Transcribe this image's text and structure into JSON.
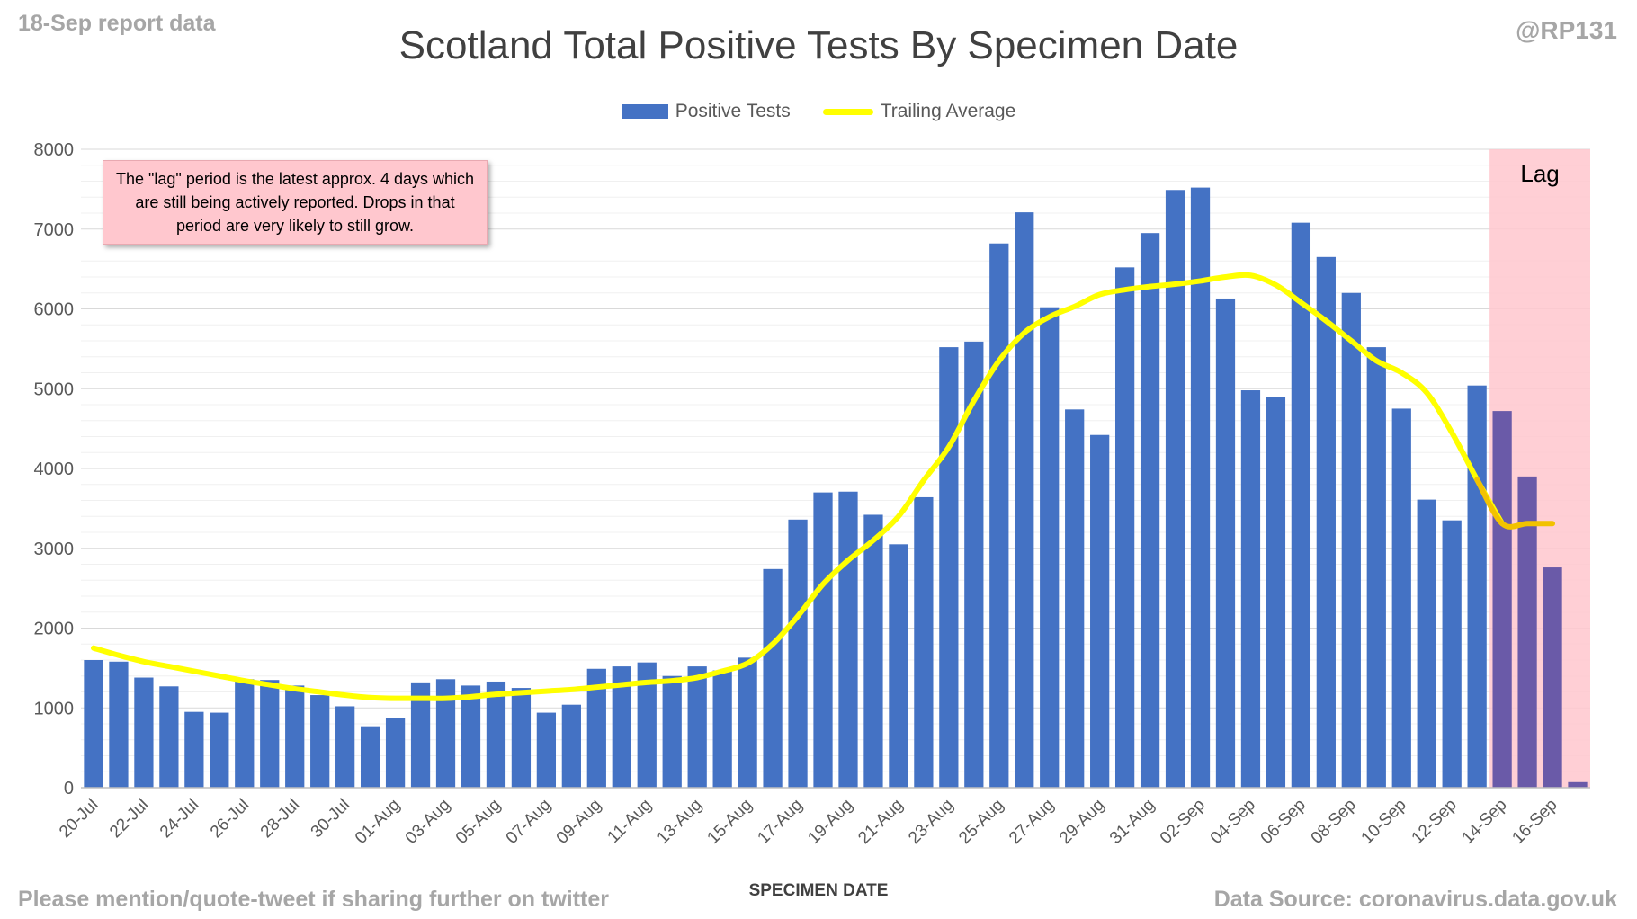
{
  "header": {
    "report_date": "18-Sep report data",
    "handle": "@RP131"
  },
  "footer": {
    "left": "Please mention/quote-tweet if sharing further on twitter",
    "right": "Data Source: coronavirus.data.gov.uk"
  },
  "annotation": "The \"lag\" period is the latest approx. 4 days which are still being actively reported.  Drops in that period are very likely to still grow.",
  "colors": {
    "bar": "#4472c4",
    "lag_bar": "#6a5aa8",
    "trailing_line": "#ffff00",
    "lag_line": "#f2c200",
    "lag_region": "#ffc7ce",
    "grid": "#d9d9d9"
  },
  "chart_data": {
    "type": "bar",
    "title": "Scotland Total Positive Tests By Specimen Date",
    "xlabel": "SPECIMEN DATE",
    "ylabel": "",
    "ylim": [
      0,
      8000
    ],
    "yticks": [
      0,
      1000,
      2000,
      3000,
      4000,
      5000,
      6000,
      7000,
      8000
    ],
    "grid": true,
    "legend": "top",
    "lag_label": "Lag",
    "lag_start": "14-Sep",
    "categories": [
      "20-Jul",
      "21-Jul",
      "22-Jul",
      "23-Jul",
      "24-Jul",
      "25-Jul",
      "26-Jul",
      "27-Jul",
      "28-Jul",
      "29-Jul",
      "30-Jul",
      "31-Jul",
      "01-Aug",
      "02-Aug",
      "03-Aug",
      "04-Aug",
      "05-Aug",
      "06-Aug",
      "07-Aug",
      "08-Aug",
      "09-Aug",
      "10-Aug",
      "11-Aug",
      "12-Aug",
      "13-Aug",
      "14-Aug",
      "15-Aug",
      "16-Aug",
      "17-Aug",
      "18-Aug",
      "19-Aug",
      "20-Aug",
      "21-Aug",
      "22-Aug",
      "23-Aug",
      "24-Aug",
      "25-Aug",
      "26-Aug",
      "27-Aug",
      "28-Aug",
      "29-Aug",
      "30-Aug",
      "31-Aug",
      "01-Sep",
      "02-Sep",
      "03-Sep",
      "04-Sep",
      "05-Sep",
      "06-Sep",
      "07-Sep",
      "08-Sep",
      "09-Sep",
      "10-Sep",
      "11-Sep",
      "12-Sep",
      "13-Sep",
      "14-Sep",
      "15-Sep",
      "16-Sep",
      "17-Sep"
    ],
    "tick_labels": [
      "20-Jul",
      "22-Jul",
      "24-Jul",
      "26-Jul",
      "28-Jul",
      "30-Jul",
      "01-Aug",
      "03-Aug",
      "05-Aug",
      "07-Aug",
      "09-Aug",
      "11-Aug",
      "13-Aug",
      "15-Aug",
      "17-Aug",
      "19-Aug",
      "21-Aug",
      "23-Aug",
      "25-Aug",
      "27-Aug",
      "29-Aug",
      "31-Aug",
      "02-Sep",
      "04-Sep",
      "06-Sep",
      "08-Sep",
      "10-Sep",
      "12-Sep",
      "14-Sep",
      "16-Sep"
    ],
    "series": [
      {
        "name": "Positive Tests",
        "values": [
          1600,
          1580,
          1380,
          1270,
          950,
          940,
          1360,
          1350,
          1280,
          1160,
          1020,
          770,
          870,
          1320,
          1360,
          1280,
          1330,
          1250,
          940,
          1040,
          1490,
          1520,
          1570,
          1400,
          1520,
          1470,
          1630,
          2740,
          3360,
          3700,
          3710,
          3420,
          3050,
          3640,
          5520,
          5590,
          6820,
          7210,
          6020,
          4740,
          4420,
          6520,
          6950,
          7490,
          7520,
          6130,
          4980,
          4900,
          7080,
          6650,
          6200,
          5520,
          4750,
          3610,
          3350,
          5040,
          4720,
          3900,
          2760,
          70
        ]
      },
      {
        "name": "Trailing Average",
        "values": [
          1750,
          1660,
          1580,
          1520,
          1460,
          1400,
          1340,
          1290,
          1240,
          1200,
          1160,
          1130,
          1120,
          1120,
          1120,
          1140,
          1170,
          1190,
          1210,
          1230,
          1260,
          1290,
          1320,
          1340,
          1380,
          1460,
          1560,
          1800,
          2150,
          2550,
          2850,
          3100,
          3400,
          3850,
          4270,
          4850,
          5350,
          5700,
          5900,
          6030,
          6180,
          6240,
          6280,
          6310,
          6350,
          6400,
          6420,
          6300,
          6080,
          5850,
          5600,
          5350,
          5200,
          4950,
          4450,
          3860,
          3310,
          3310,
          3310,
          3310
        ]
      }
    ]
  }
}
